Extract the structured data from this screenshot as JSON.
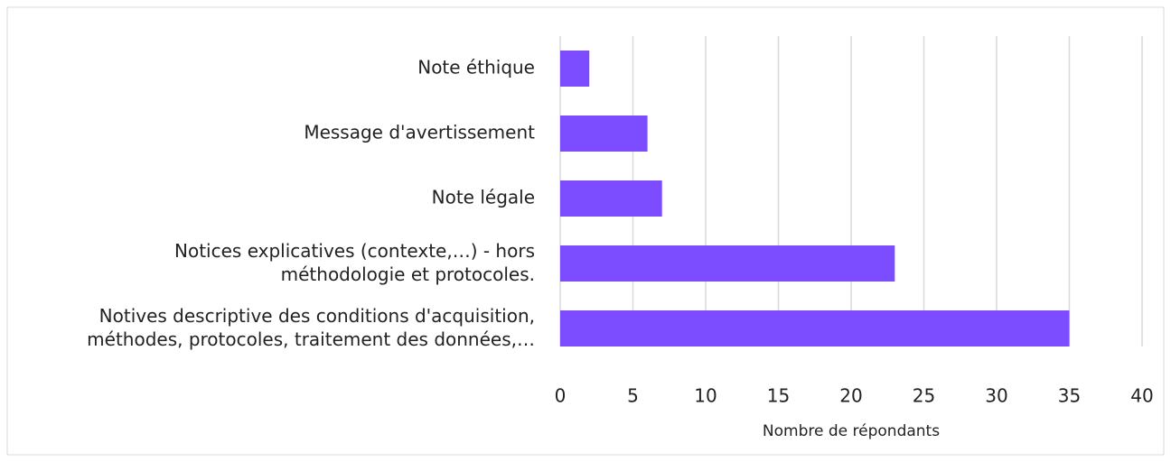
{
  "chart_data": {
    "type": "barh",
    "categories": [
      "Note éthique",
      "Message d'avertissement",
      "Note légale",
      "Notices explicatives (contexte,…) - hors\nméthodologie et protocoles.",
      "Notives descriptive des conditions d'acquisition,\nméthodes, protocoles, traitement des données,…"
    ],
    "values": [
      2,
      6,
      7,
      23,
      35
    ],
    "color": "#7c4dff",
    "xlim": [
      0,
      40
    ],
    "xticks": [
      0,
      5,
      10,
      15,
      20,
      25,
      30,
      35,
      40
    ],
    "grid": true,
    "xlabel": "Nombre de répondants"
  }
}
